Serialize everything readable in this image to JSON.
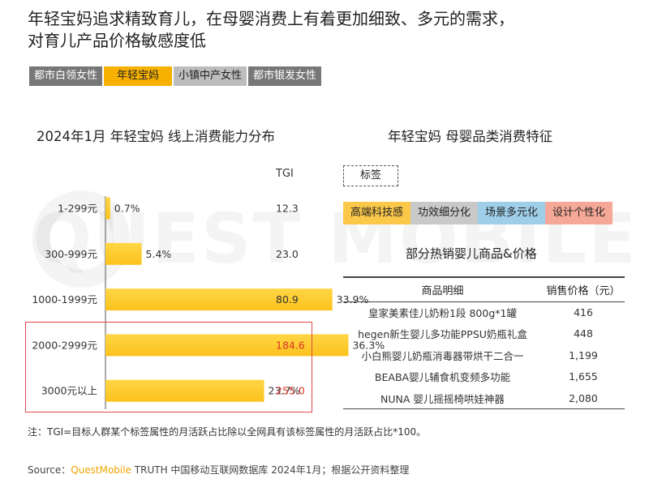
{
  "headline": "年轻宝妈追求精致育儿，在母婴消费上有着更加细致、多元的需求，对育儿产品价格敏感度低",
  "watermark": "QUEST MOBILE",
  "tabs": [
    {
      "label": "都市白领女性"
    },
    {
      "label": "年轻宝妈"
    },
    {
      "label": "小镇中产女性"
    },
    {
      "label": "都市银发女性"
    }
  ],
  "chart_data": {
    "type": "bar",
    "orientation": "horizontal",
    "title": "2024年1月 年轻宝妈 线上消费能力分布",
    "categories": [
      "1-299元",
      "300-999元",
      "1000-1999元",
      "2000-2999元",
      "3000元以上"
    ],
    "values": [
      0.7,
      5.4,
      33.9,
      36.3,
      23.7
    ],
    "value_labels": [
      "0.7%",
      "5.4%",
      "33.9%",
      "36.3%",
      "23.7%"
    ],
    "tgi_header": "TGI",
    "tgi": [
      "12.3",
      "23.0",
      "80.9",
      "184.6",
      "255.0"
    ],
    "tgi_highlight": [
      false,
      false,
      false,
      true,
      true
    ],
    "xlim": [
      0,
      40
    ],
    "bar_color": "#fbc21d",
    "highlight_color": "#d9342b"
  },
  "right": {
    "title": "年轻宝妈 母婴品类消费特征",
    "tag_label": "标签",
    "tags": [
      {
        "label": "高端科技感",
        "color": "#fbc84a"
      },
      {
        "label": "功效细分化",
        "color": "#c9c9c9"
      },
      {
        "label": "场景多元化",
        "color": "#9fcfe8"
      },
      {
        "label": "设计个性化",
        "color": "#f5a898"
      }
    ],
    "table_title": "部分热销婴儿商品&价格",
    "table_headers": [
      "商品明细",
      "销售价格（元）"
    ],
    "table_rows": [
      {
        "name": "皇家美素佳儿奶粉1段 800g*1罐",
        "price": "416"
      },
      {
        "name": "hegen新生婴儿多功能PPSU奶瓶礼盒",
        "price": "448"
      },
      {
        "name": "小白熊婴儿奶瓶消毒器带烘干二合一",
        "price": "1,199"
      },
      {
        "name": "BEABA婴儿辅食机变频多功能",
        "price": "1,655"
      },
      {
        "name": "NUNA 婴儿摇摇椅哄娃神器",
        "price": "2,080"
      }
    ]
  },
  "note": "注：TGI=目标人群某个标签属性的月活跃占比除以全网具有该标签属性的月活跃占比*100。",
  "source": {
    "prefix": "Source：",
    "brand": "QuestMobile",
    "rest": " TRUTH 中国移动互联网数据库 2024年1月；根据公开资料整理"
  }
}
